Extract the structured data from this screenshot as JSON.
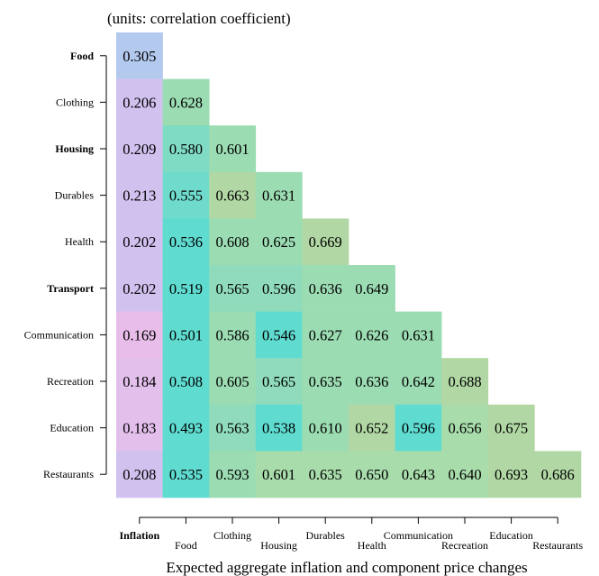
{
  "chart_data": {
    "type": "heatmap",
    "title": "",
    "units_note": "(units: correlation coefficient)",
    "xlabel": "Expected aggregate inflation and component price changes",
    "ylabel": "",
    "rows": [
      "Food",
      "Clothing",
      "Housing",
      "Durables",
      "Health",
      "Transport",
      "Communication",
      "Recreation",
      "Education",
      "Restaurants"
    ],
    "row_bold": [
      true,
      false,
      true,
      false,
      false,
      true,
      false,
      false,
      false,
      false
    ],
    "columns": [
      "Inflation",
      "Food",
      "Clothing",
      "Housing",
      "Durables",
      "Health",
      "Communication",
      "Recreation",
      "Education",
      "Restaurants"
    ],
    "column_bold": [
      true,
      false,
      false,
      false,
      false,
      false,
      false,
      false,
      false,
      false
    ],
    "values": [
      [
        0.305
      ],
      [
        0.206,
        0.628
      ],
      [
        0.209,
        0.58,
        0.601
      ],
      [
        0.213,
        0.555,
        0.663,
        0.631
      ],
      [
        0.202,
        0.536,
        0.608,
        0.625,
        0.669
      ],
      [
        0.202,
        0.519,
        0.565,
        0.596,
        0.636,
        0.649
      ],
      [
        0.169,
        0.501,
        0.586,
        0.546,
        0.627,
        0.626,
        0.631
      ],
      [
        0.184,
        0.508,
        0.605,
        0.565,
        0.635,
        0.636,
        0.642,
        0.688
      ],
      [
        0.183,
        0.493,
        0.563,
        0.538,
        0.61,
        0.652,
        0.596,
        0.656,
        0.675
      ],
      [
        0.208,
        0.535,
        0.593,
        0.601,
        0.635,
        0.65,
        0.643,
        0.64,
        0.693,
        0.686
      ]
    ],
    "cell_colors": [
      [
        "#b3c9ee"
      ],
      [
        "#d1c1ef",
        "#9bdcb2"
      ],
      [
        "#d1c1ef",
        "#7fdbc4",
        "#9bdcb2"
      ],
      [
        "#d1c1ef",
        "#6fdbcc",
        "#b1d8a4",
        "#9bdcb2"
      ],
      [
        "#d1c1ef",
        "#5fdbd0",
        "#9bdcb2",
        "#9bdcb2",
        "#b1d8a4"
      ],
      [
        "#d1c1ef",
        "#5fdbd0",
        "#8fdbbb",
        "#8fdbbb",
        "#9bdcb2",
        "#9bdcb2"
      ],
      [
        "#e8bdea",
        "#5fdbd0",
        "#9bdcb2",
        "#5fdbd0",
        "#9bdcb2",
        "#9bdcb2",
        "#9bdcb2"
      ],
      [
        "#e3bfec",
        "#5fdbd0",
        "#9bdcb2",
        "#8fdbbb",
        "#9bdcb2",
        "#9bdcb2",
        "#9bdcb2",
        "#b1d8a4"
      ],
      [
        "#e3bfec",
        "#5fdbd0",
        "#8fdbbb",
        "#5fdbd0",
        "#9bdcb2",
        "#b1d8a4",
        "#5fdbd0",
        "#a8dcab",
        "#b1d8a4"
      ],
      [
        "#d1c1ef",
        "#5fdbd0",
        "#9bdcb2",
        "#a8dcab",
        "#a8dcab",
        "#a8dcab",
        "#a8dcab",
        "#a8dcab",
        "#b1d8a4",
        "#b1d8a4"
      ]
    ],
    "grid": false,
    "legend": "none"
  }
}
